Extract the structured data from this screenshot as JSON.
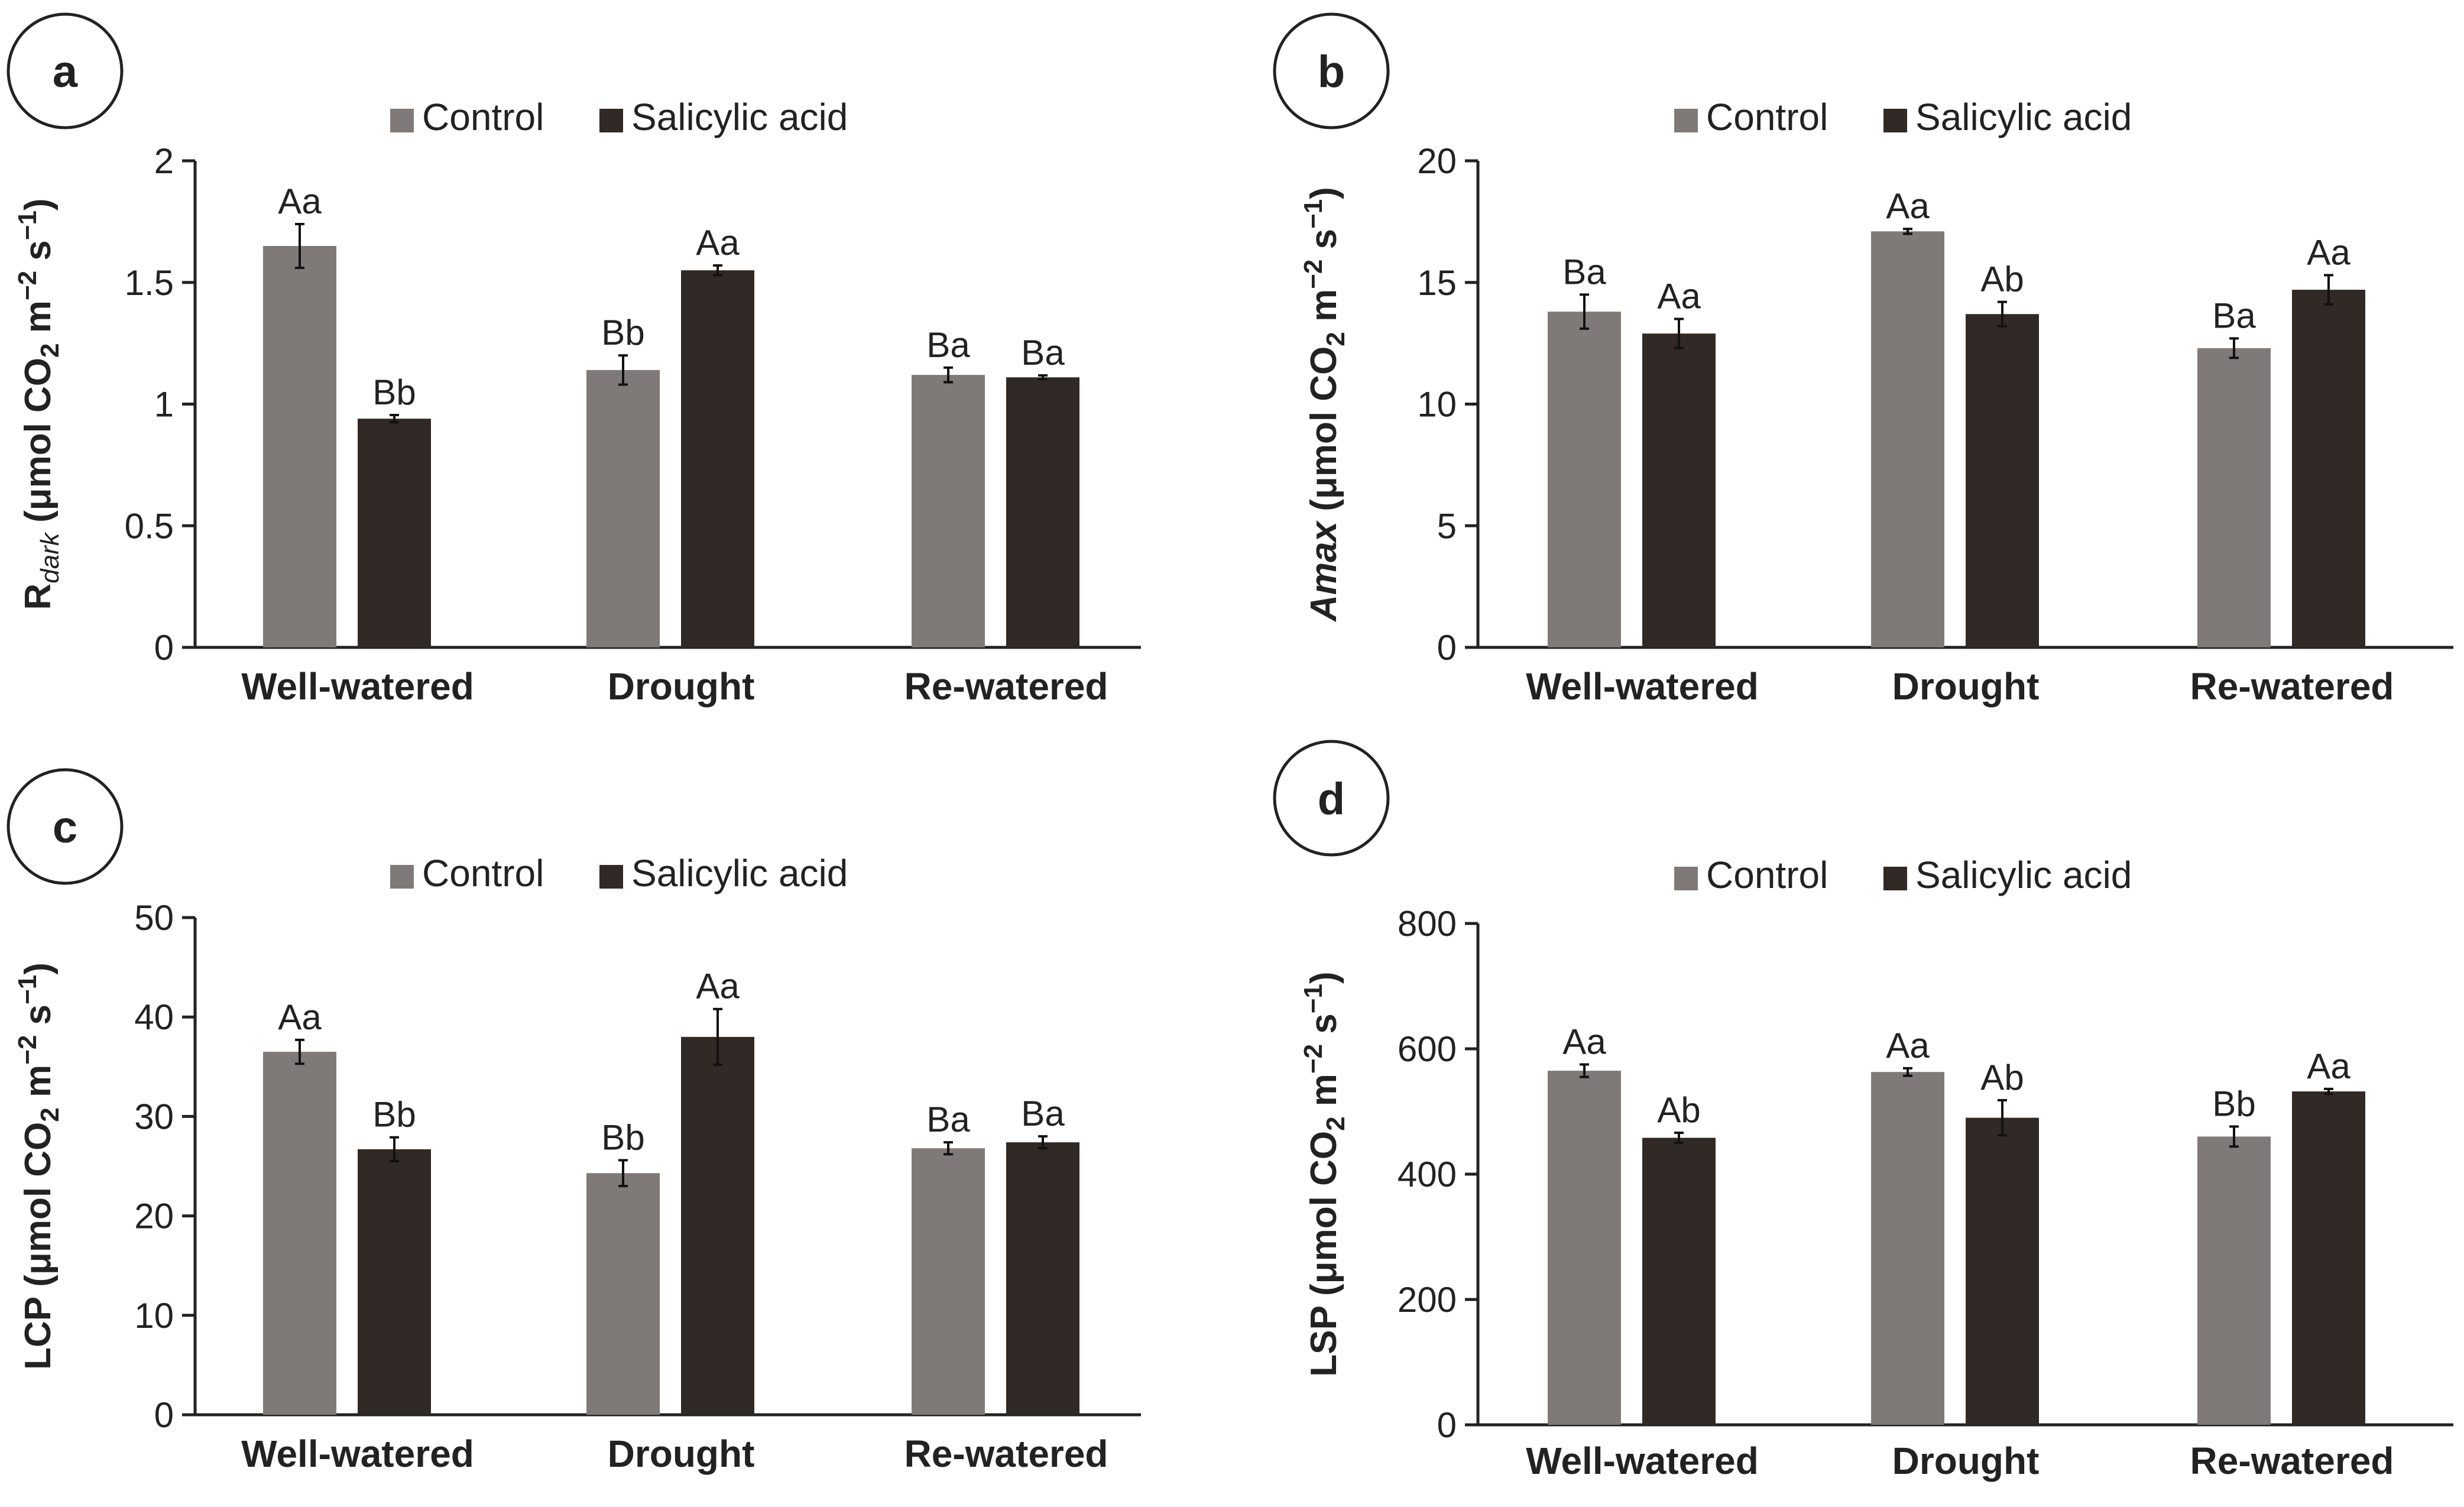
{
  "colors": {
    "control": "#7f7a78",
    "salicylic_acid": "#312925",
    "axis": "#222222",
    "error_bar": "#111111"
  },
  "chart_data": [
    {
      "panel": "a",
      "type": "bar",
      "categories": [
        "Well-watered",
        "Drought",
        "Re-watered"
      ],
      "series": [
        {
          "name": "Control",
          "values": [
            1.65,
            1.14,
            1.12
          ],
          "errors": [
            0.09,
            0.06,
            0.03
          ],
          "labels": [
            "Aa",
            "Bb",
            "Ba"
          ]
        },
        {
          "name": "Salicylic acid",
          "values": [
            0.94,
            1.55,
            1.11
          ],
          "errors": [
            0.015,
            0.02,
            0.008
          ],
          "labels": [
            "Bb",
            "Aa",
            "Ba"
          ]
        }
      ],
      "ylim": [
        0,
        2
      ],
      "yticks": [
        0,
        0.5,
        1,
        1.5,
        2
      ],
      "ytick_labels": [
        "0",
        "0.5",
        "1",
        "1.5",
        "2"
      ],
      "ylabel": {
        "main": "R",
        "sub": "dark",
        "unit_prefix": "(μmol CO",
        "unit_sub": "2",
        "unit_mid": " m",
        "unit_sup1": "−2",
        "unit_mid2": " s",
        "unit_sup2": "−1",
        "unit_end": ")"
      }
    },
    {
      "panel": "b",
      "type": "bar",
      "categories": [
        "Well-watered",
        "Drought",
        "Re-watered"
      ],
      "series": [
        {
          "name": "Control",
          "values": [
            13.8,
            17.1,
            12.3
          ],
          "errors": [
            0.7,
            0.1,
            0.4
          ],
          "labels": [
            "Ba",
            "Aa",
            "Ba"
          ]
        },
        {
          "name": "Salicylic acid",
          "values": [
            12.9,
            13.7,
            14.7
          ],
          "errors": [
            0.6,
            0.5,
            0.6
          ],
          "labels": [
            "Aa",
            "Ab",
            "Aa"
          ]
        }
      ],
      "ylim": [
        0,
        20
      ],
      "yticks": [
        0,
        5,
        10,
        15,
        20
      ],
      "ytick_labels": [
        "0",
        "5",
        "10",
        "15",
        "20"
      ],
      "ylabel": {
        "main": "Amax",
        "sub": "",
        "unit_prefix": "(μmol CO",
        "unit_sub": "2",
        "unit_mid": " m",
        "unit_sup1": "−2",
        "unit_mid2": " s",
        "unit_sup2": "−1",
        "unit_end": ")"
      }
    },
    {
      "panel": "c",
      "type": "bar",
      "categories": [
        "Well-watered",
        "Drought",
        "Re-watered"
      ],
      "series": [
        {
          "name": "Control",
          "values": [
            36.5,
            24.3,
            26.8
          ],
          "errors": [
            1.2,
            1.3,
            0.6
          ],
          "labels": [
            "Aa",
            "Bb",
            "Ba"
          ]
        },
        {
          "name": "Salicylic acid",
          "values": [
            26.7,
            38.0,
            27.4
          ],
          "errors": [
            1.2,
            2.8,
            0.6
          ],
          "labels": [
            "Bb",
            "Aa",
            "Ba"
          ]
        }
      ],
      "ylim": [
        0,
        50
      ],
      "yticks": [
        0,
        10,
        20,
        30,
        40,
        50
      ],
      "ytick_labels": [
        "0",
        "10",
        "20",
        "30",
        "40",
        "50"
      ],
      "ylabel": {
        "main": "LCP",
        "sub": "",
        "unit_prefix": "(μmol CO",
        "unit_sub": "2",
        "unit_mid": " m",
        "unit_sup1": "−2",
        "unit_mid2": " s",
        "unit_sup2": "−1",
        "unit_end": ")"
      }
    },
    {
      "panel": "d",
      "type": "bar",
      "categories": [
        "Well-watered",
        "Drought",
        "Re-watered"
      ],
      "series": [
        {
          "name": "Control",
          "values": [
            565,
            563,
            460
          ],
          "errors": [
            10,
            6,
            16
          ],
          "labels": [
            "Aa",
            "Aa",
            "Bb"
          ]
        },
        {
          "name": "Salicylic acid",
          "values": [
            458,
            490,
            532
          ],
          "errors": [
            8,
            28,
            4
          ],
          "labels": [
            "Ab",
            "Ab",
            "Aa"
          ]
        }
      ],
      "ylim": [
        0,
        800
      ],
      "yticks": [
        0,
        200,
        400,
        600,
        800
      ],
      "ytick_labels": [
        "0",
        "200",
        "400",
        "600",
        "800"
      ],
      "ylabel": {
        "main": "LSP",
        "sub": "",
        "unit_prefix": "(μmol CO",
        "unit_sub": "2",
        "unit_mid": " m",
        "unit_sup1": "−2",
        "unit_mid2": " s",
        "unit_sup2": "−1",
        "unit_end": ")"
      }
    }
  ]
}
